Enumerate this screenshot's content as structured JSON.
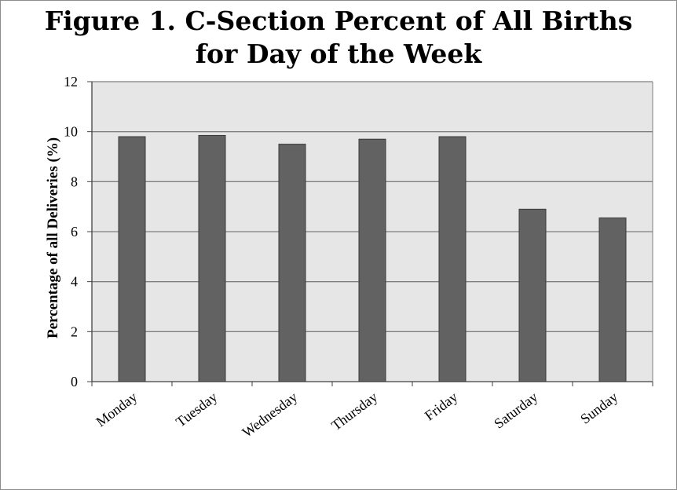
{
  "chart_data": {
    "type": "bar",
    "title_line1": "Figure 1. C-Section Percent of All Births",
    "title_line2": "for Day of the Week",
    "xlabel": "",
    "ylabel": "Percentage of all Deliveries (%)",
    "categories": [
      "Monday",
      "Tuesday",
      "Wednesday",
      "Thursday",
      "Friday",
      "Saturday",
      "Sunday"
    ],
    "values": [
      9.8,
      9.85,
      9.5,
      9.7,
      9.8,
      6.9,
      6.55
    ],
    "ylim": [
      0,
      12
    ],
    "yticks": [
      0,
      2,
      4,
      6,
      8,
      10,
      12
    ],
    "grid": true,
    "legend": "none",
    "colors": {
      "bar": "#626262",
      "bar_border": "#3a3a3a",
      "plot_bg": "#e6e6e6",
      "grid": "#7f7f7f"
    }
  }
}
